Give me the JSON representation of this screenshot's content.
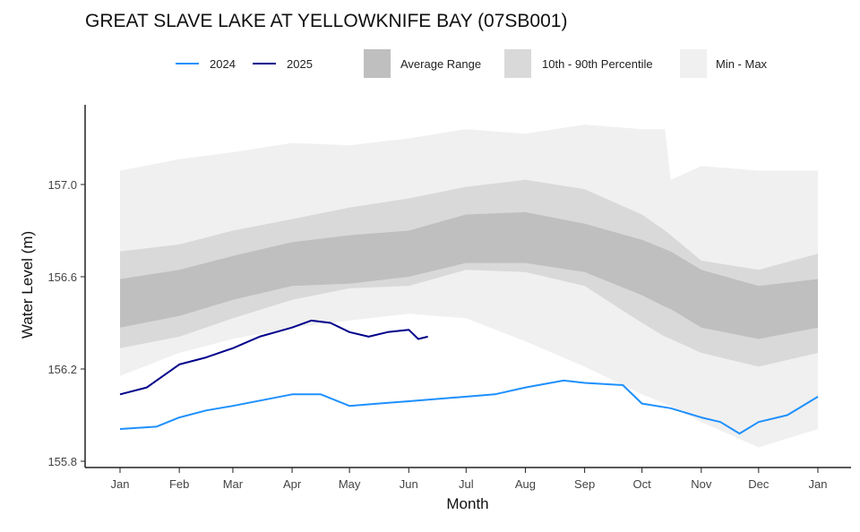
{
  "chart_data": {
    "type": "area",
    "title": "GREAT SLAVE LAKE AT YELLOWKNIFE BAY (07SB001)",
    "xlabel": "Month",
    "ylabel": "Water Level (m)",
    "ylim": [
      155.77,
      157.35
    ],
    "xlim": [
      -12,
      377
    ],
    "yticks": [
      155.8,
      156.2,
      156.6,
      157.0
    ],
    "ytick_labels": [
      "155.8",
      "156.2",
      "156.6",
      "157.0"
    ],
    "xticks": [
      0,
      31,
      59,
      90,
      120,
      151,
      181,
      212,
      243,
      273,
      304,
      334,
      365
    ],
    "xtick_labels": [
      "Jan",
      "Feb",
      "Mar",
      "Apr",
      "May",
      "Jun",
      "Jul",
      "Aug",
      "Sep",
      "Oct",
      "Nov",
      "Dec",
      "Jan"
    ],
    "grid": false,
    "legend_placement": "top",
    "band_days": [
      0,
      31,
      59,
      90,
      120,
      151,
      181,
      212,
      243,
      273,
      285,
      288,
      304,
      334,
      365
    ],
    "bands": [
      {
        "name": "Min - Max",
        "color": "#f0f0f0",
        "upper": [
          157.06,
          157.11,
          157.14,
          157.18,
          157.17,
          157.2,
          157.24,
          157.22,
          157.26,
          157.24,
          157.24,
          157.02,
          157.08,
          157.06,
          157.06
        ],
        "lower": [
          156.17,
          156.27,
          156.33,
          156.38,
          156.41,
          156.44,
          156.42,
          156.32,
          156.21,
          156.09,
          156.05,
          156.04,
          155.97,
          155.86,
          155.94
        ]
      },
      {
        "name": "10th - 90th Percentile",
        "color": "#d9d9d9",
        "upper": [
          156.71,
          156.74,
          156.8,
          156.85,
          156.9,
          156.94,
          156.99,
          157.02,
          156.98,
          156.87,
          156.8,
          156.78,
          156.67,
          156.63,
          156.7
        ],
        "lower": [
          156.29,
          156.34,
          156.42,
          156.5,
          156.55,
          156.56,
          156.63,
          156.62,
          156.56,
          156.4,
          156.34,
          156.33,
          156.27,
          156.21,
          156.27
        ]
      },
      {
        "name": "Average Range",
        "color": "#bfbfbf",
        "upper": [
          156.59,
          156.63,
          156.69,
          156.75,
          156.78,
          156.8,
          156.87,
          156.88,
          156.83,
          156.76,
          156.72,
          156.71,
          156.63,
          156.56,
          156.59
        ],
        "lower": [
          156.38,
          156.43,
          156.5,
          156.56,
          156.57,
          156.6,
          156.66,
          156.66,
          156.62,
          156.52,
          156.47,
          156.46,
          156.38,
          156.33,
          156.38
        ]
      }
    ],
    "series": [
      {
        "name": "2024",
        "color": "#1e90ff",
        "x": [
          0,
          19,
          31,
          45,
          59,
          90,
          105,
          120,
          135,
          151,
          181,
          196,
          212,
          232,
          243,
          263,
          273,
          288,
          304,
          314,
          324,
          334,
          349,
          365
        ],
        "y": [
          155.94,
          155.95,
          155.99,
          156.02,
          156.04,
          156.09,
          156.09,
          156.04,
          156.05,
          156.06,
          156.08,
          156.09,
          156.12,
          156.15,
          156.14,
          156.13,
          156.05,
          156.03,
          155.99,
          155.97,
          155.92,
          155.97,
          156.0,
          156.08
        ]
      },
      {
        "name": "2025",
        "color": "#00008b",
        "x": [
          0,
          14,
          31,
          45,
          59,
          73,
          90,
          100,
          110,
          120,
          130,
          140,
          151,
          156,
          161
        ],
        "y": [
          156.09,
          156.12,
          156.22,
          156.25,
          156.29,
          156.34,
          156.38,
          156.41,
          156.4,
          156.36,
          156.34,
          156.36,
          156.37,
          156.33,
          156.34
        ]
      }
    ],
    "legend": [
      "2024",
      "2025",
      "Average Range",
      "10th - 90th Percentile",
      "Min - Max"
    ]
  }
}
